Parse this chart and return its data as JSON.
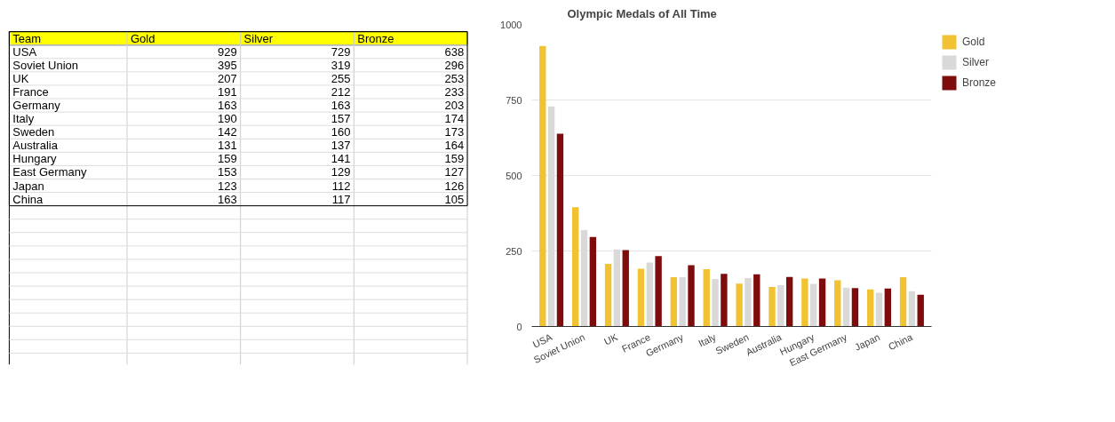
{
  "chart_data": [
    {
      "type": "other",
      "annotations": [
        "Team",
        "Gold",
        "Silver",
        "Bronze",
        "USA",
        "929",
        "729",
        "638",
        "Soviet Union",
        "395",
        "319",
        "296",
        "UK",
        "207",
        "255",
        "253",
        "France",
        "191",
        "212",
        "233",
        "Germany",
        "163",
        "163",
        "203",
        "Italy",
        "190",
        "157",
        "174",
        "Sweden",
        "142",
        "160",
        "173",
        "Australia",
        "131",
        "137",
        "164",
        "Hungary",
        "159",
        "141",
        "159",
        "East Germany",
        "153",
        "129",
        "127",
        "Japan",
        "123",
        "112",
        "126",
        "China",
        "163",
        "117",
        "105"
      ]
    },
    {
      "type": "bar",
      "title": "Olympic Medals of All Time",
      "categories": [
        "USA",
        "Soviet Union",
        "UK",
        "France",
        "Germany",
        "Italy",
        "Sweden",
        "Australia",
        "Hungary",
        "East Germany",
        "Japan",
        "China"
      ],
      "series": [
        {
          "name": "Gold",
          "color": "#f1c232",
          "values": [
            929,
            395,
            207,
            191,
            163,
            190,
            142,
            131,
            159,
            153,
            123,
            163
          ]
        },
        {
          "name": "Silver",
          "color": "#d9d9d9",
          "values": [
            729,
            319,
            255,
            212,
            163,
            157,
            160,
            137,
            141,
            129,
            112,
            117
          ]
        },
        {
          "name": "Bronze",
          "color": "#7f0c0c",
          "values": [
            638,
            296,
            253,
            233,
            203,
            174,
            173,
            164,
            159,
            127,
            126,
            105
          ]
        }
      ],
      "ylim": [
        0,
        1000
      ],
      "yticks": [
        0,
        250,
        500,
        750,
        1000
      ],
      "grid": "y",
      "legend": "right"
    }
  ]
}
